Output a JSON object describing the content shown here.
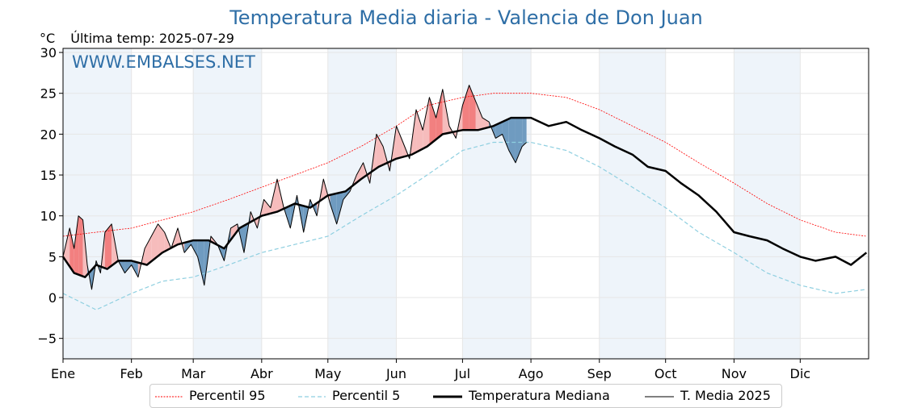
{
  "chart_data": {
    "type": "line",
    "title": "Temperatura Media diaria - Valencia de Don Juan",
    "ylabel": "°C",
    "last_temp_label": "Última temp: 2025-07-29",
    "watermark": "WWW.EMBALSES.NET",
    "ylim": [
      -7.5,
      30.5
    ],
    "yticks": [
      "−5",
      "0",
      "5",
      "10",
      "15",
      "20",
      "25",
      "30"
    ],
    "ytick_values": [
      -5,
      0,
      5,
      10,
      15,
      20,
      25,
      30
    ],
    "months": [
      "Ene",
      "Feb",
      "Mar",
      "Abr",
      "May",
      "Jun",
      "Jul",
      "Ago",
      "Sep",
      "Oct",
      "Nov",
      "Dic"
    ],
    "month_start_days": [
      0,
      31,
      59,
      90,
      120,
      151,
      181,
      212,
      243,
      273,
      304,
      334
    ],
    "days_in_year": 365,
    "grid": true,
    "legend_position": "bottom",
    "series": [
      {
        "name": "Percentil 95",
        "style": "red-dotted",
        "x": [
          0,
          15,
          31,
          45,
          59,
          75,
          90,
          105,
          120,
          135,
          151,
          165,
          181,
          195,
          212,
          228,
          243,
          258,
          273,
          288,
          304,
          319,
          334,
          350,
          364
        ],
        "values": [
          7.5,
          8.0,
          8.5,
          9.5,
          10.5,
          12.0,
          13.5,
          15.0,
          16.5,
          18.5,
          21.0,
          23.5,
          24.5,
          25.0,
          25.0,
          24.5,
          23.0,
          21.0,
          19.0,
          16.5,
          14.0,
          11.5,
          9.5,
          8.0,
          7.5
        ]
      },
      {
        "name": "Percentil 5",
        "style": "lightblue-dashed",
        "x": [
          0,
          15,
          31,
          45,
          59,
          75,
          90,
          105,
          120,
          135,
          151,
          165,
          181,
          195,
          212,
          228,
          243,
          258,
          273,
          288,
          304,
          319,
          334,
          350,
          364
        ],
        "values": [
          0.5,
          -1.5,
          0.5,
          2.0,
          2.5,
          4.0,
          5.5,
          6.5,
          7.5,
          10.0,
          12.5,
          15.0,
          18.0,
          19.0,
          19.0,
          18.0,
          16.0,
          13.5,
          11.0,
          8.0,
          5.5,
          3.0,
          1.5,
          0.5,
          1.0
        ]
      },
      {
        "name": "Temperatura Mediana",
        "style": "black-thick",
        "x": [
          0,
          5,
          10,
          15,
          20,
          25,
          31,
          38,
          45,
          52,
          59,
          66,
          73,
          80,
          90,
          97,
          105,
          112,
          120,
          128,
          135,
          143,
          151,
          158,
          165,
          172,
          181,
          188,
          195,
          203,
          212,
          220,
          228,
          235,
          243,
          250,
          258,
          265,
          273,
          280,
          288,
          296,
          304,
          311,
          319,
          326,
          334,
          341,
          350,
          357,
          364
        ],
        "values": [
          5.0,
          3.0,
          2.5,
          4.0,
          3.5,
          4.5,
          4.5,
          4.0,
          5.5,
          6.5,
          7.0,
          7.0,
          6.0,
          8.5,
          10.0,
          10.5,
          11.5,
          11.0,
          12.5,
          13.0,
          14.5,
          16.0,
          17.0,
          17.5,
          18.5,
          20.0,
          20.5,
          20.5,
          21.0,
          22.0,
          22.0,
          21.0,
          21.5,
          20.5,
          19.5,
          18.5,
          17.5,
          16.0,
          15.5,
          14.0,
          12.5,
          10.5,
          8.0,
          7.5,
          7.0,
          6.0,
          5.0,
          4.5,
          5.0,
          4.0,
          5.5
        ]
      },
      {
        "name": "T. Media 2025",
        "style": "black-thin",
        "x": [
          0,
          3,
          5,
          7,
          9,
          11,
          13,
          15,
          17,
          19,
          22,
          25,
          28,
          31,
          34,
          37,
          40,
          43,
          46,
          49,
          52,
          55,
          58,
          61,
          64,
          67,
          70,
          73,
          76,
          79,
          82,
          85,
          88,
          91,
          94,
          97,
          100,
          103,
          106,
          109,
          112,
          115,
          118,
          121,
          124,
          127,
          130,
          133,
          136,
          139,
          142,
          145,
          148,
          151,
          154,
          157,
          160,
          163,
          166,
          169,
          172,
          175,
          178,
          181,
          184,
          187,
          190,
          193,
          196,
          199,
          202,
          205,
          208,
          210
        ],
        "values": [
          5.0,
          8.5,
          6.0,
          10.0,
          9.5,
          4.0,
          1.0,
          4.5,
          3.0,
          8.0,
          9.0,
          4.5,
          3.0,
          4.0,
          2.5,
          6.0,
          7.5,
          9.0,
          8.0,
          6.0,
          8.5,
          5.5,
          6.5,
          5.0,
          1.5,
          7.5,
          6.5,
          4.5,
          8.5,
          9.0,
          5.5,
          10.5,
          8.5,
          12.0,
          11.0,
          14.5,
          11.0,
          8.5,
          12.5,
          8.0,
          12.0,
          10.0,
          14.5,
          11.5,
          9.0,
          12.0,
          13.0,
          15.0,
          16.5,
          14.0,
          20.0,
          18.5,
          15.5,
          21.0,
          19.0,
          17.0,
          23.0,
          20.5,
          24.5,
          22.0,
          25.5,
          21.0,
          19.5,
          23.5,
          26.0,
          24.0,
          22.0,
          21.5,
          19.5,
          20.0,
          18.0,
          16.5,
          18.5,
          19.0
        ]
      }
    ],
    "legend": [
      "Percentil 95",
      "Percentil 5",
      "Temperatura Mediana",
      "T. Media 2025"
    ],
    "colors": {
      "title": "#2e6ea6",
      "p95": "#ff0000",
      "p5": "#8ecfe0",
      "median": "#000000",
      "above_fill": "#f28080",
      "above_fill_light": "#f6bcbc",
      "below_fill": "#6f9bc0",
      "month_band": "#eef4fa"
    }
  }
}
